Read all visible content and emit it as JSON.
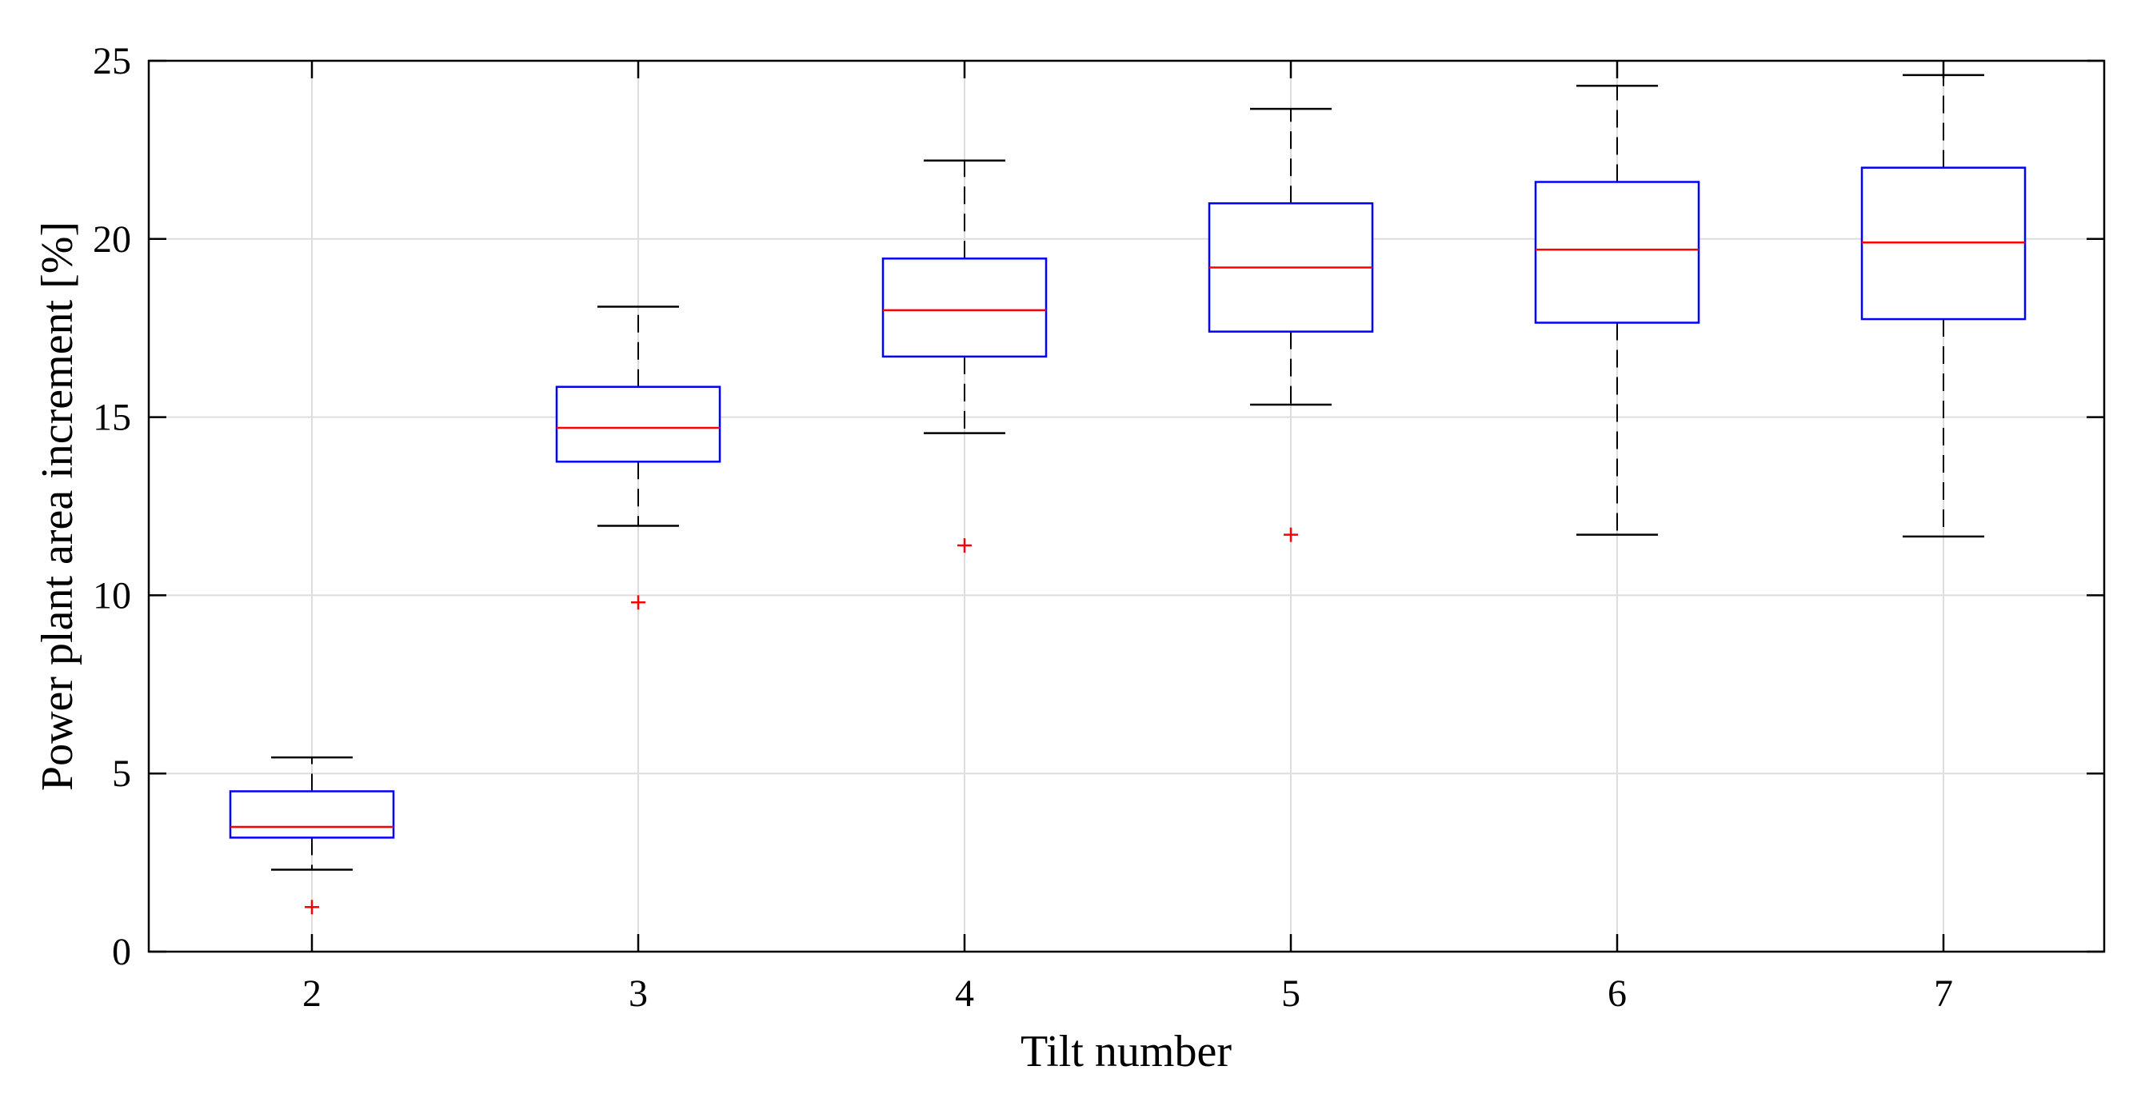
{
  "chart_data": {
    "type": "boxplot",
    "title": "",
    "xlabel": "Tilt number",
    "ylabel": "Power plant area increment [%]",
    "categories": [
      "2",
      "3",
      "4",
      "5",
      "6",
      "7"
    ],
    "ylim": [
      0,
      25
    ],
    "yticks": [
      "0",
      "5",
      "10",
      "15",
      "20",
      "25"
    ],
    "grid": true,
    "boxes": [
      {
        "category": "2",
        "whisker_low": 2.3,
        "q1": 3.2,
        "median": 3.5,
        "q3": 4.5,
        "whisker_high": 5.45,
        "outliers": [
          1.25
        ]
      },
      {
        "category": "3",
        "whisker_low": 11.95,
        "q1": 13.75,
        "median": 14.7,
        "q3": 15.85,
        "whisker_high": 18.1,
        "outliers": [
          9.8
        ]
      },
      {
        "category": "4",
        "whisker_low": 14.55,
        "q1": 16.7,
        "median": 18.0,
        "q3": 19.45,
        "whisker_high": 22.2,
        "outliers": [
          11.4
        ]
      },
      {
        "category": "5",
        "whisker_low": 15.35,
        "q1": 17.4,
        "median": 19.2,
        "q3": 21.0,
        "whisker_high": 23.65,
        "outliers": [
          11.7
        ]
      },
      {
        "category": "6",
        "whisker_low": 11.7,
        "q1": 17.65,
        "median": 19.7,
        "q3": 21.6,
        "whisker_high": 24.3,
        "outliers": []
      },
      {
        "category": "7",
        "whisker_low": 11.65,
        "q1": 17.75,
        "median": 19.9,
        "q3": 22.0,
        "whisker_high": 24.6,
        "outliers": []
      }
    ],
    "colors": {
      "box": "#0000ff",
      "median": "#ff0000",
      "whisker": "#000000",
      "outlier": "#ff0000",
      "grid": "#dddddd",
      "axis": "#000000"
    }
  }
}
